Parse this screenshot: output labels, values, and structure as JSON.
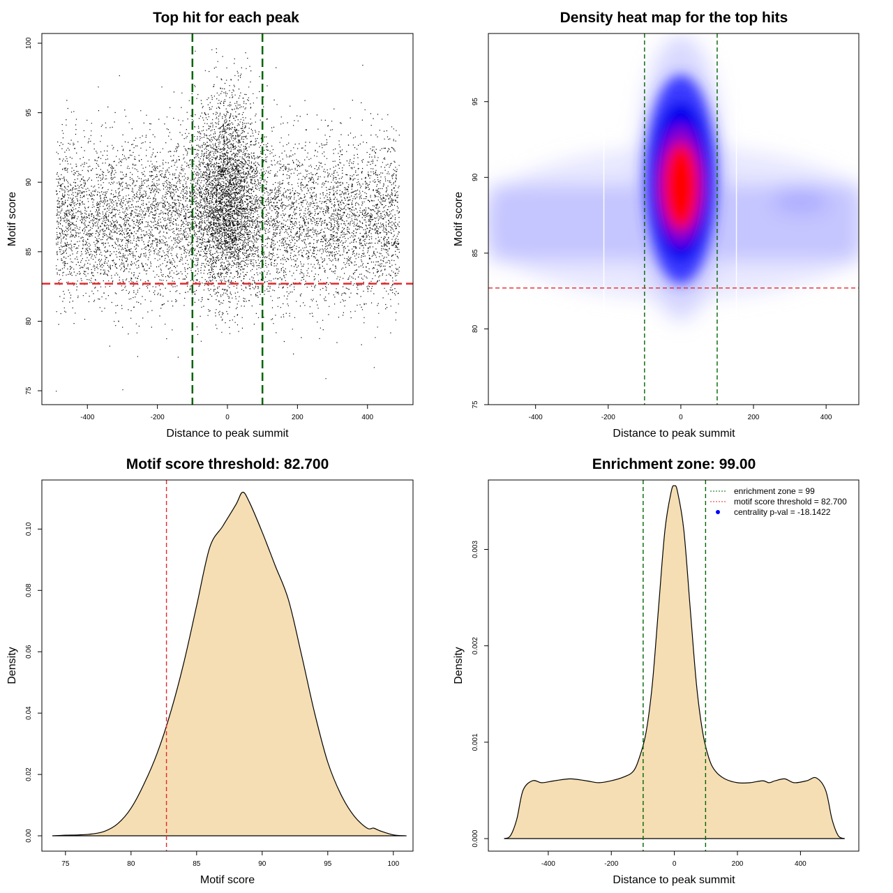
{
  "chart_data": [
    {
      "type": "scatter",
      "title": "Top hit for each peak",
      "xlabel": "Distance to peak summit",
      "ylabel": "Motif score",
      "xlim": [
        -530,
        530
      ],
      "ylim": [
        74.0,
        100.7
      ],
      "xticks": [
        -400,
        -200,
        0,
        200,
        400
      ],
      "yticks": [
        75,
        80,
        85,
        90,
        95,
        100
      ],
      "vlines": [
        -100,
        100
      ],
      "hline": 82.7,
      "vline_color": "#006400",
      "hline_color": "#e8262a",
      "point_color": "#000000",
      "point_model": {
        "n_total": 22000,
        "background_x_range": [
          -490,
          490
        ],
        "background_score_peak": 87.5,
        "central_cluster_x_peak": 0,
        "central_cluster_score_peak": 89.5,
        "score_max": 99.7
      }
    },
    {
      "type": "heatmap",
      "title": "Density heat map for the top hits",
      "xlabel": "Distance to peak summit",
      "ylabel": "Motif score",
      "xlim": [
        -530,
        490
      ],
      "ylim": [
        75.0,
        99.5
      ],
      "xticks": [
        -400,
        -200,
        0,
        200,
        400
      ],
      "yticks": [
        75,
        80,
        85,
        90,
        95
      ],
      "vlines": [
        -100,
        100
      ],
      "hline": 82.7,
      "vline_color": "#006400",
      "hline_color": "#e8262a",
      "colorscale": [
        "#ffffff",
        "#0000ff",
        "#ff0000"
      ],
      "density_peak": {
        "x": 0,
        "score": 89.5
      },
      "background_band_score": 87
    },
    {
      "type": "area",
      "title": "Motif score threshold: 82.700",
      "xlabel": "Motif score",
      "ylabel": "Density",
      "xlim": [
        73.2,
        101.5
      ],
      "ylim": [
        -0.005,
        0.116
      ],
      "xticks": [
        75,
        80,
        85,
        90,
        95,
        100
      ],
      "yticks": [
        0.0,
        0.02,
        0.04,
        0.06,
        0.08,
        0.1
      ],
      "ytick_labels": [
        "0.00",
        "0.02",
        "0.04",
        "0.06",
        "0.08",
        "0.10"
      ],
      "vline": 82.7,
      "vline_color": "#e8262a",
      "fill_color": "#f5deb3",
      "x": [
        74,
        75,
        76,
        77,
        78,
        79,
        80,
        81,
        82,
        83,
        84,
        85,
        86,
        87,
        88,
        88.5,
        89,
        90,
        91,
        92,
        93,
        94,
        95,
        96,
        97,
        98,
        98.5,
        99,
        100,
        101
      ],
      "y": [
        0.0,
        0.0002,
        0.0003,
        0.0006,
        0.0015,
        0.004,
        0.009,
        0.017,
        0.027,
        0.04,
        0.056,
        0.075,
        0.094,
        0.101,
        0.108,
        0.112,
        0.109,
        0.099,
        0.088,
        0.077,
        0.059,
        0.04,
        0.024,
        0.0135,
        0.0065,
        0.0025,
        0.0025,
        0.0016,
        0.0003,
        0.0
      ]
    },
    {
      "type": "area",
      "title": "Enrichment zone: 99.00",
      "xlabel": "Distance to peak summit",
      "ylabel": "Density",
      "xlim": [
        -590,
        585
      ],
      "ylim": [
        -0.00013,
        0.00372
      ],
      "xticks": [
        -400,
        -200,
        0,
        200,
        400
      ],
      "yticks": [
        0.0,
        0.001,
        0.002,
        0.003
      ],
      "ytick_labels": [
        "0.000",
        "0.001",
        "0.002",
        "0.003"
      ],
      "vlines": [
        -99,
        99
      ],
      "vline_color": "#006400",
      "fill_color": "#f5deb3",
      "x": [
        -540,
        -520,
        -500,
        -480,
        -450,
        -420,
        -380,
        -330,
        -280,
        -240,
        -200,
        -160,
        -130,
        -110,
        -90,
        -70,
        -50,
        -30,
        -10,
        0,
        10,
        30,
        50,
        70,
        90,
        110,
        130,
        160,
        200,
        240,
        280,
        300,
        320,
        350,
        380,
        420,
        450,
        480,
        500,
        520,
        540
      ],
      "y": [
        0.0,
        3e-05,
        0.0002,
        0.0005,
        0.0006,
        0.00058,
        0.0006,
        0.00062,
        0.0006,
        0.00058,
        0.0006,
        0.00064,
        0.0007,
        0.00085,
        0.0011,
        0.0016,
        0.0024,
        0.0032,
        0.0036,
        0.00366,
        0.0036,
        0.0032,
        0.0024,
        0.0016,
        0.0011,
        0.00083,
        0.0007,
        0.00062,
        0.00058,
        0.00058,
        0.0006,
        0.00058,
        0.0006,
        0.00062,
        0.00058,
        0.0006,
        0.00063,
        0.0005,
        0.0002,
        3e-05,
        0.0
      ],
      "legend": {
        "position": "top-right",
        "items": [
          {
            "label": "enrichment zone = 99",
            "color": "#006400",
            "style": "dotted-line"
          },
          {
            "label": "motif score threshold = 82.700",
            "color": "#e8262a",
            "style": "dotted-line"
          },
          {
            "label": "centrality p-val = -18.1422",
            "color": "#0000ff",
            "style": "point"
          }
        ]
      }
    }
  ]
}
